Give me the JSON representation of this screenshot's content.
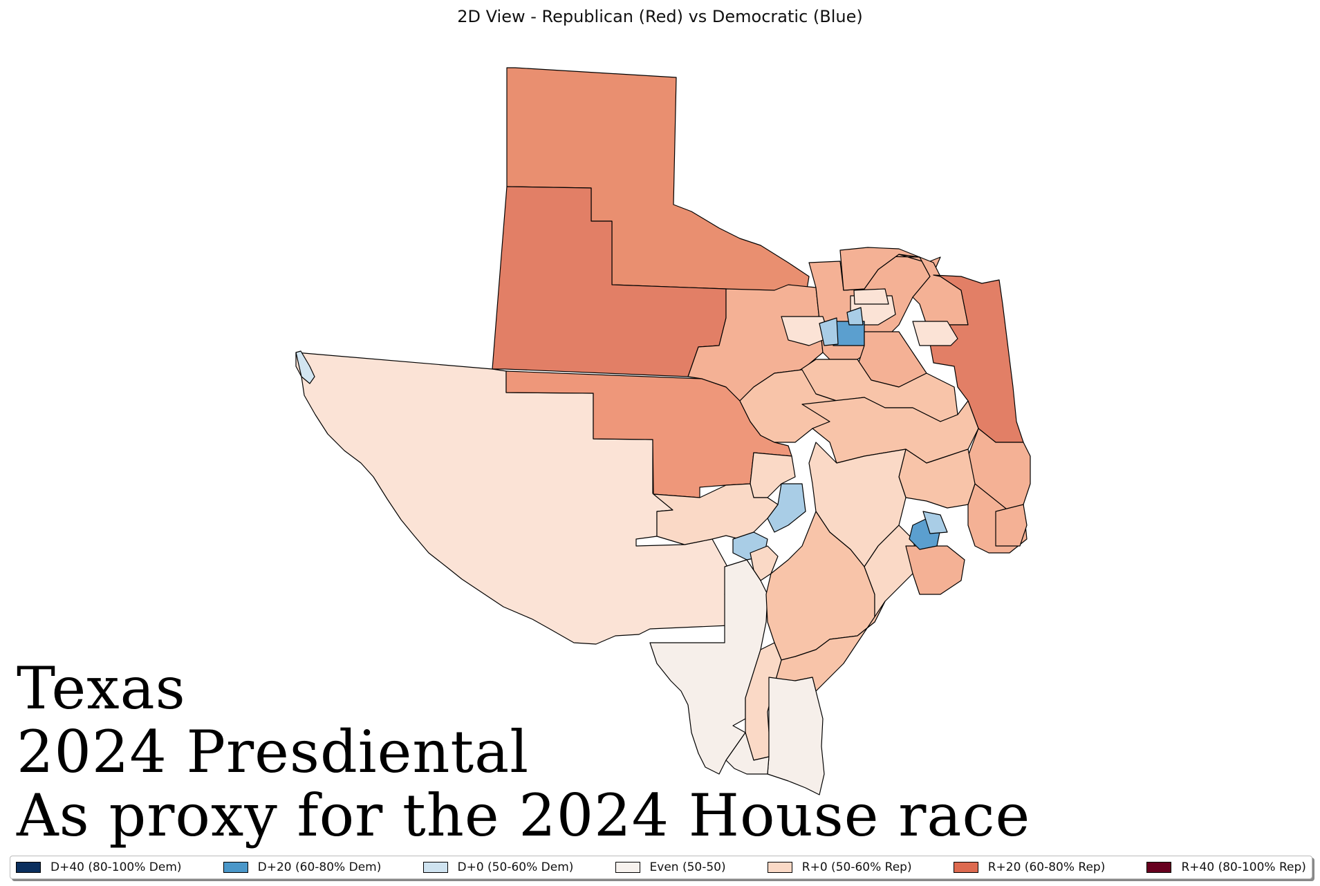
{
  "plot": {
    "title": "2D View - Republican (Red) vs Democratic (Blue)"
  },
  "overlay": {
    "line1": "Texas",
    "line2": "2024 Presdiental",
    "line3": "As proxy for the 2024 House race"
  },
  "legend": [
    {
      "label": "D+40 (80-100% Dem)",
      "color": "#0b2f5e"
    },
    {
      "label": "D+20 (60-80% Dem)",
      "color": "#4a97c9"
    },
    {
      "label": "D+0 (50-60% Dem)",
      "color": "#cfe3f0"
    },
    {
      "label": "Even (50-50)",
      "color": "#f7f2ee"
    },
    {
      "label": "R+0 (50-60% Rep)",
      "color": "#fad9c6"
    },
    {
      "label": "R+20 (60-80% Rep)",
      "color": "#dd6a50"
    },
    {
      "label": "R+40 (80-100% Rep)",
      "color": "#67001f"
    }
  ],
  "map_colors": {
    "r_strong_a": "#e98f70",
    "r_strong_b": "#e27f66",
    "r_strong_c": "#ee977a",
    "r_mid": "#f4b195",
    "r_light": "#f8c4a9",
    "r_lighter": "#fad9c6",
    "r_lightest": "#fbe3d6",
    "even": "#f6efea",
    "d_mid": "#5b9fcf",
    "d_light": "#a9cde6",
    "d_pale": "#d2e5f1"
  }
}
